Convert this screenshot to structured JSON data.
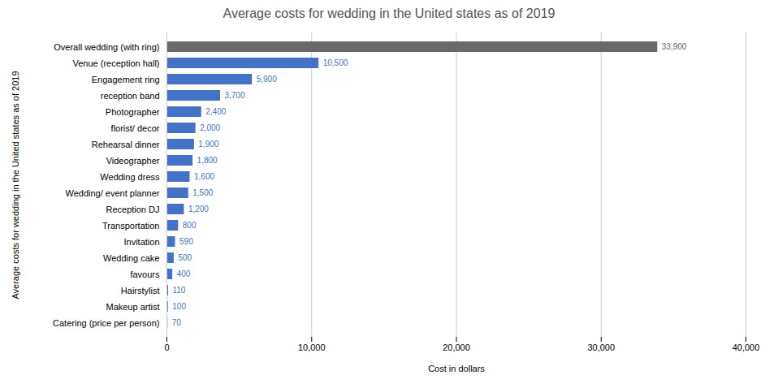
{
  "chart_data": {
    "type": "bar",
    "orientation": "horizontal",
    "title": "Average costs for wedding in the United states as of 2019",
    "xlabel": "Cost in dollars",
    "ylabel": "Average costs for wedding in the United states as of 2019",
    "categories": [
      "Catering (price per person)",
      "Makeup artist",
      "Hairstylist",
      "favours",
      "Wedding cake",
      "Invitation",
      "Transportation",
      "Reception DJ",
      "Wedding/ event planner",
      "Wedding dress",
      "Videographer",
      "Rehearsal dinner",
      "florist/ decor",
      "Photographer",
      "reception band",
      "Engagement ring",
      "Venue (reception hall)",
      "Overall wedding (with ring)"
    ],
    "values": [
      70,
      100,
      110,
      400,
      500,
      590,
      800,
      1200,
      1500,
      1600,
      1800,
      1900,
      2000,
      2400,
      3700,
      5900,
      10500,
      33900
    ],
    "value_labels": [
      "70",
      "100",
      "110",
      "400",
      "500",
      "590",
      "800",
      "1,200",
      "1,500",
      "1,600",
      "1,800",
      "1,900",
      "2,000",
      "2,400",
      "3,700",
      "5,900",
      "10,500",
      "33,900"
    ],
    "colors": [
      "#4472C4",
      "#4472C4",
      "#4472C4",
      "#4472C4",
      "#4472C4",
      "#4472C4",
      "#4472C4",
      "#4472C4",
      "#4472C4",
      "#4472C4",
      "#4472C4",
      "#4472C4",
      "#4472C4",
      "#4472C4",
      "#4472C4",
      "#4472C4",
      "#4472C4",
      "#696969"
    ],
    "data_labels": true,
    "xlim": [
      0,
      40000
    ],
    "xticks": [
      0,
      {
        "value": 10000,
        "label": "10,000"
      },
      {
        "value": 20000,
        "label": "20,000"
      },
      {
        "value": 30000,
        "label": "30,000"
      },
      {
        "value": 40000,
        "label": "40,000"
      }
    ],
    "grid": true
  }
}
